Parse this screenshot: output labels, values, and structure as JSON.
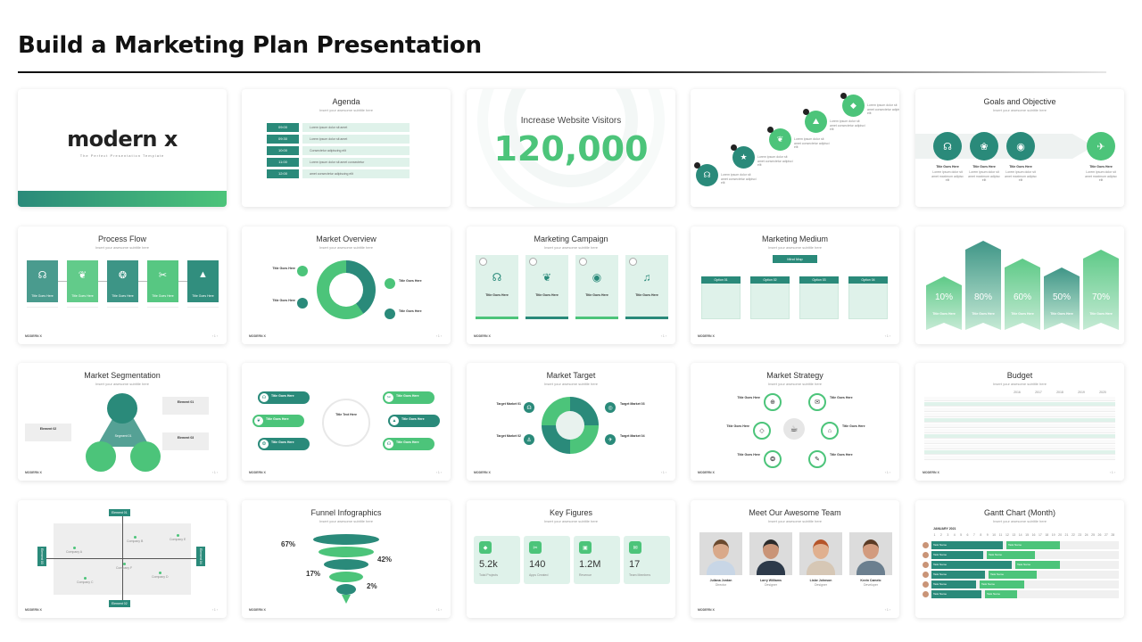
{
  "header": {
    "title": "Build a Marketing Plan Presentation"
  },
  "footer": {
    "logo": "MODERN X",
    "pages": "‹ 1 ›"
  },
  "colors": {
    "teal": "#2a8a7a",
    "green": "#4cc47a",
    "light": "#dff2ea",
    "gray": "#eeeeee"
  },
  "slides": {
    "cover": {
      "brand": "modern x",
      "tagline": "The Perfect Presentation Template"
    },
    "agenda": {
      "title": "Agenda",
      "subtitle": "Insert your awesome subtitle here",
      "rows": [
        {
          "time": "09:00",
          "text": "Lorem ipsum dolor sit amet"
        },
        {
          "time": "09:30",
          "text": "Lorem ipsum dolor sit amet"
        },
        {
          "time": "10:00",
          "text": "Consectetur adipiscing elit"
        },
        {
          "time": "11:00",
          "text": "Lorem ipsum dolor sit amet consectetur"
        },
        {
          "time": "12:00",
          "text": "amet consectetur adipiscing elit"
        }
      ]
    },
    "visitors": {
      "title": "Increase Website Visitors",
      "value": "120,000"
    },
    "steps": {
      "text": "Lorem ipsum dolor sit amet consectetur adipisci elit"
    },
    "goals": {
      "title": "Goals and Objective",
      "subtitle": "Insert your awesome subtitle here",
      "items": [
        "Title Goes Here",
        "Title Goes Here",
        "Title Goes Here",
        "Title Goes Here"
      ],
      "desc": "Lorem ipsum dolor sit amet maximum adipisc elit"
    },
    "process": {
      "title": "Process Flow",
      "subtitle": "Insert your awesome subtitle here",
      "items": [
        "Title Goes Here",
        "Title Goes Here",
        "Title Goes Here",
        "Title Goes Here",
        "Title Goes Here"
      ]
    },
    "market_overview": {
      "title": "Market Overview",
      "subtitle": "Insert your awesome subtitle here",
      "labels": [
        "Title Goes Here",
        "Title Goes Here",
        "Title Goes Here",
        "Title Goes Here"
      ],
      "percents": [
        "70%",
        "30%",
        "50%",
        "60%"
      ]
    },
    "campaign": {
      "title": "Marketing Campaign",
      "subtitle": "Insert your awesome subtitle here",
      "cards": [
        "Title Goes Here",
        "Title Goes Here",
        "Title Goes Here",
        "Title Goes Here"
      ]
    },
    "medium": {
      "title": "Marketing Medium",
      "subtitle": "Insert your awesome subtitle here",
      "button": "Mind Map",
      "options": [
        "Option 01",
        "Option 02",
        "Option 03",
        "Option 04"
      ]
    },
    "arrows": {
      "values": [
        "10%",
        "80%",
        "60%",
        "50%",
        "70%"
      ],
      "labels": [
        "Title Goes Here",
        "Title Goes Here",
        "Title Goes Here",
        "Title Goes Here",
        "Title Goes Here"
      ]
    },
    "segmentation": {
      "title": "Market Segmentation",
      "subtitle": "Insert your awesome subtitle here",
      "elements": [
        "Element 01",
        "Element 02",
        "Element 03"
      ],
      "center": "Segment 01"
    },
    "pills": {
      "label": "Title Goes Here",
      "center": "Title Text Here"
    },
    "target": {
      "title": "Market Target",
      "subtitle": "Insert your awesome subtitle here",
      "labels": [
        "Target Market 01",
        "Target Market 02",
        "Target Market 03",
        "Target Market 04"
      ]
    },
    "strategy": {
      "title": "Market Strategy",
      "subtitle": "Insert your awesome subtitle here",
      "labels": [
        "Title Goes Here",
        "Title Goes Here",
        "Title Goes Here",
        "Title Goes Here",
        "Title Goes Here",
        "Title Goes Here"
      ]
    },
    "budget": {
      "title": "Budget",
      "subtitle": "Insert your awesome subtitle here",
      "years": [
        "2016",
        "2017",
        "2018",
        "2019",
        "2020"
      ]
    },
    "quadrant": {
      "axes": [
        "Element 01",
        "Element 02",
        "Element 03",
        "Element 04"
      ],
      "companies": [
        "Company A",
        "Company B",
        "Company C",
        "Company D",
        "Company E",
        "Company F"
      ]
    },
    "funnel": {
      "title": "Funnel Infographics",
      "subtitle": "Insert your awesome subtitle here",
      "percents": [
        "67%",
        "42%",
        "17%",
        "2%"
      ]
    },
    "figures": {
      "title": "Key Figures",
      "subtitle": "Insert your awesome subtitle here",
      "items": [
        {
          "value": "5.2k",
          "label": "Total Projects"
        },
        {
          "value": "140",
          "label": "Apps Created"
        },
        {
          "value": "1.2M",
          "label": "Revenue"
        },
        {
          "value": "17",
          "label": "Team Members"
        }
      ]
    },
    "team": {
      "title": "Meet Our Awesome Team",
      "subtitle": "Insert your awesome subtitle here",
      "members": [
        {
          "name": "Juliana Jordan",
          "role": "Director"
        },
        {
          "name": "Larry Williams",
          "role": "Designer"
        },
        {
          "name": "Lisbe Johnson",
          "role": "Designer"
        },
        {
          "name": "Kevin Camelo",
          "role": "Developer"
        }
      ]
    },
    "gantt": {
      "title": "Gantt Chart (Month)",
      "subtitle": "Insert your awesome subtitle here",
      "month": "JANUARY 2021",
      "task": "Task Name"
    }
  }
}
